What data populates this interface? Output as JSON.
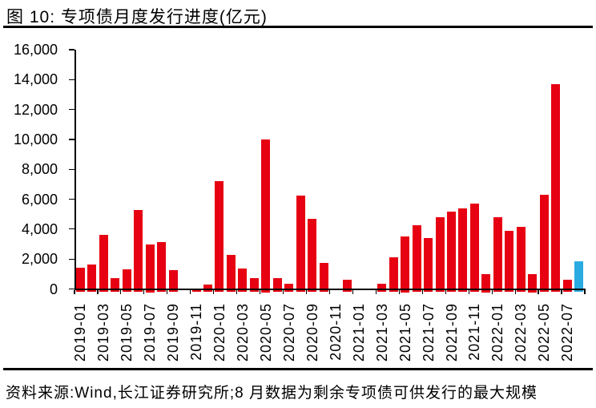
{
  "header": {
    "title": "图 10: 专项债月度发行进度(亿元)"
  },
  "footer": {
    "source_note": "资料来源:Wind,长江证券研究所;8 月数据为剩余专项债可供发行的最大规模"
  },
  "chart_data": {
    "type": "bar",
    "title": "专项债月度发行进度(亿元)",
    "unit": "亿元",
    "categories": [
      "2019-01",
      "2019-02",
      "2019-03",
      "2019-04",
      "2019-05",
      "2019-06",
      "2019-07",
      "2019-08",
      "2019-09",
      "2019-10",
      "2019-11",
      "2019-12",
      "2020-01",
      "2020-02",
      "2020-03",
      "2020-04",
      "2020-05",
      "2020-06",
      "2020-07",
      "2020-08",
      "2020-09",
      "2020-10",
      "2020-11",
      "2020-12",
      "2021-01",
      "2021-02",
      "2021-03",
      "2021-04",
      "2021-05",
      "2021-06",
      "2021-07",
      "2021-08",
      "2021-09",
      "2021-10",
      "2021-11",
      "2021-12",
      "2022-01",
      "2022-02",
      "2022-03",
      "2022-04",
      "2022-05",
      "2022-06",
      "2022-07",
      "2022-08"
    ],
    "values": [
      1400,
      1650,
      3600,
      700,
      1300,
      5300,
      3000,
      3150,
      1250,
      0,
      30,
      300,
      7200,
      2300,
      1350,
      700,
      10000,
      750,
      350,
      6250,
      4700,
      1750,
      0,
      600,
      0,
      0,
      350,
      2100,
      3500,
      4250,
      3400,
      4800,
      5150,
      5400,
      5700,
      1000,
      4800,
      3900,
      4150,
      1000,
      6300,
      13700,
      600,
      1850
    ],
    "bar_color": "#e60012",
    "highlight": {
      "index": 43,
      "category": "2022-08",
      "color": "#29abe2"
    },
    "ylim": [
      0,
      16000
    ],
    "ytick_step": 2000,
    "ytick_labels": [
      "0",
      "2,000",
      "4,000",
      "6,000",
      "8,000",
      "10,000",
      "12,000",
      "14,000",
      "16,000"
    ],
    "xtick_labels": [
      "2019-01",
      "2019-03",
      "2019-05",
      "2019-07",
      "2019-09",
      "2019-11",
      "2020-01",
      "2020-03",
      "2020-05",
      "2020-07",
      "2020-09",
      "2020-11",
      "2021-01",
      "2021-03",
      "2021-05",
      "2021-07",
      "2021-09",
      "2021-11",
      "2022-01",
      "2022-03",
      "2022-05",
      "2022-07"
    ],
    "xtick_every": 2,
    "grid": false,
    "legend": "none"
  }
}
